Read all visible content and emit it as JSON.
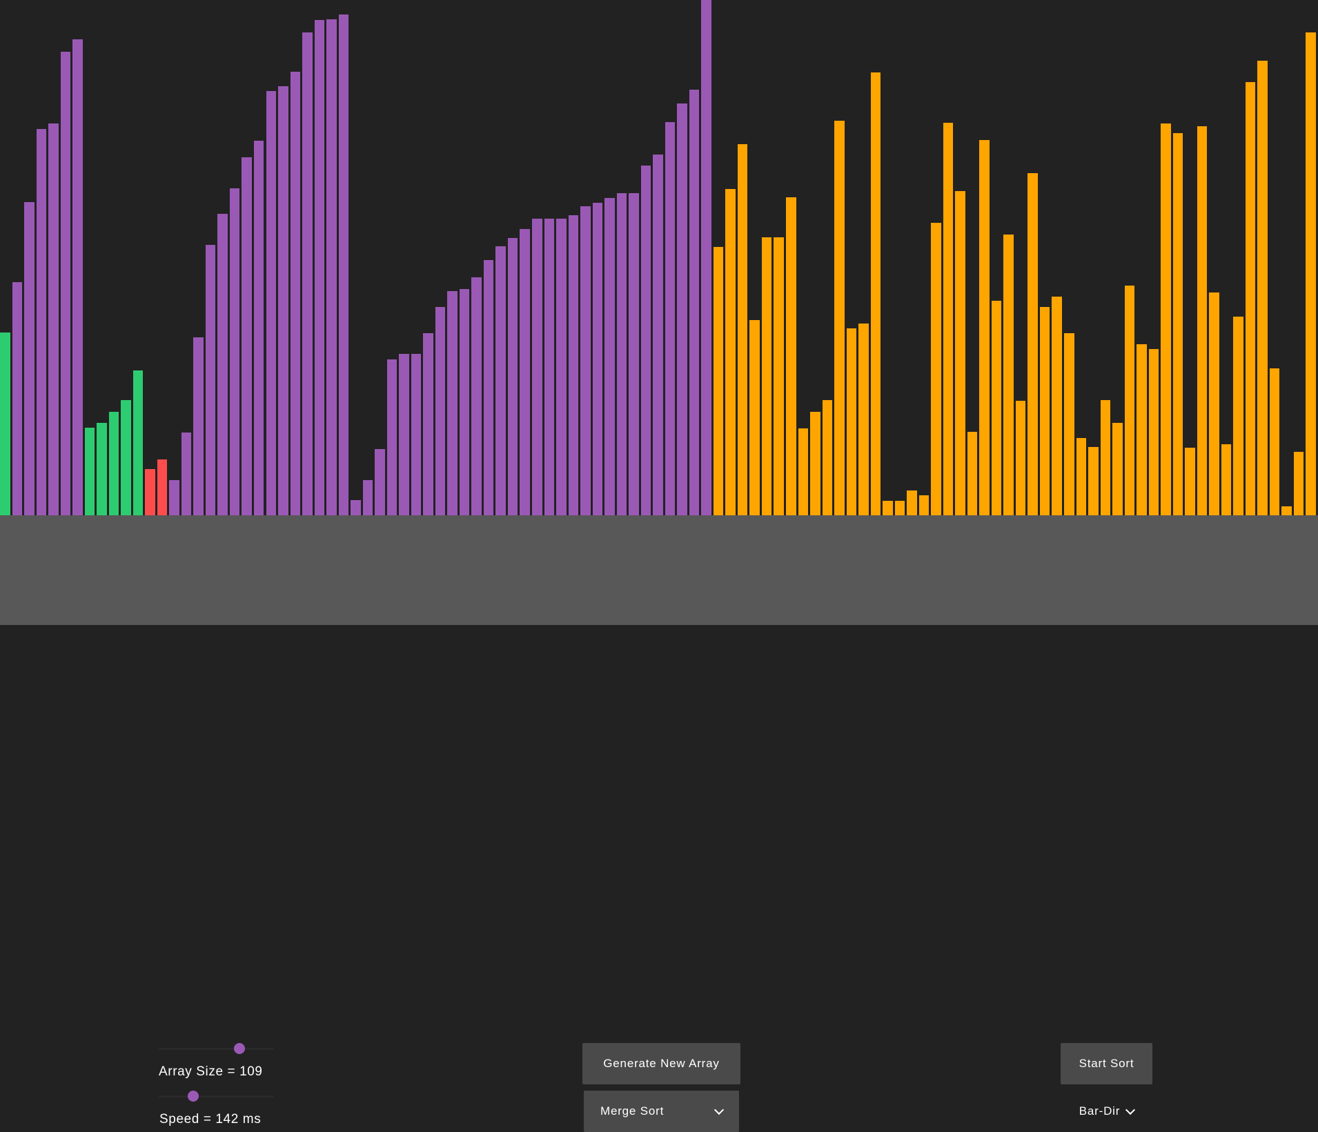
{
  "visualizer": {
    "array_size_label": "Array Size = 109",
    "speed_label": "Speed = 142 ms",
    "generate_label": "Generate New Array",
    "algorithm_label": "Merge Sort",
    "start_label": "Start Sort",
    "bar_dir_label": "Bar-Dir",
    "array_size_slider_value": 0.7,
    "speed_slider_value": 0.3
  },
  "colors": {
    "background": "#222222",
    "panel": "#585858",
    "sorted": "#9b59b6",
    "comparing": "#2ecc71",
    "swapping": "#ff4d4d",
    "unsorted": "#ffa500",
    "button": "#4a4a4a",
    "button_dark": "#222222"
  },
  "chart_data": {
    "type": "bar",
    "values": [
      265,
      338,
      454,
      560,
      568,
      672,
      690,
      127,
      134,
      150,
      167,
      210,
      67,
      81,
      51,
      120,
      258,
      392,
      437,
      474,
      519,
      543,
      615,
      622,
      643,
      700,
      718,
      719,
      726,
      22,
      51,
      96,
      226,
      234,
      234,
      264,
      302,
      325,
      328,
      345,
      370,
      390,
      402,
      415,
      430,
      430,
      430,
      435,
      448,
      453,
      460,
      467,
      467,
      507,
      523,
      570,
      597,
      617,
      747,
      389,
      473,
      538,
      283,
      403,
      403,
      461,
      126,
      150,
      167,
      572,
      271,
      278,
      642,
      21,
      21,
      36,
      29,
      424,
      569,
      470,
      121,
      544,
      311,
      407,
      166,
      496,
      302,
      317,
      264,
      112,
      99,
      167,
      134,
      333,
      248,
      241,
      568,
      554,
      98,
      564,
      323,
      103,
      288,
      628,
      659,
      213,
      13,
      92,
      700
    ],
    "states": [
      "c",
      "s",
      "s",
      "s",
      "s",
      "s",
      "s",
      "c",
      "c",
      "c",
      "c",
      "c",
      "r",
      "r",
      "s",
      "s",
      "s",
      "s",
      "s",
      "s",
      "s",
      "s",
      "s",
      "s",
      "s",
      "s",
      "s",
      "s",
      "s",
      "s",
      "s",
      "s",
      "s",
      "s",
      "s",
      "s",
      "s",
      "s",
      "s",
      "s",
      "s",
      "s",
      "s",
      "s",
      "s",
      "s",
      "s",
      "s",
      "s",
      "s",
      "s",
      "s",
      "s",
      "s",
      "s",
      "s",
      "s",
      "s",
      "s",
      "u",
      "u",
      "u",
      "u",
      "u",
      "u",
      "u",
      "u",
      "u",
      "u",
      "u",
      "u",
      "u",
      "u",
      "u",
      "u",
      "u",
      "u",
      "u",
      "u",
      "u",
      "u",
      "u",
      "u",
      "u",
      "u",
      "u",
      "u",
      "u",
      "u",
      "u",
      "u",
      "u",
      "u",
      "u",
      "u",
      "u",
      "u",
      "u",
      "u",
      "u",
      "u",
      "u",
      "u",
      "u",
      "u",
      "u",
      "u",
      "u",
      "u"
    ],
    "ylim": [
      0,
      747
    ]
  }
}
